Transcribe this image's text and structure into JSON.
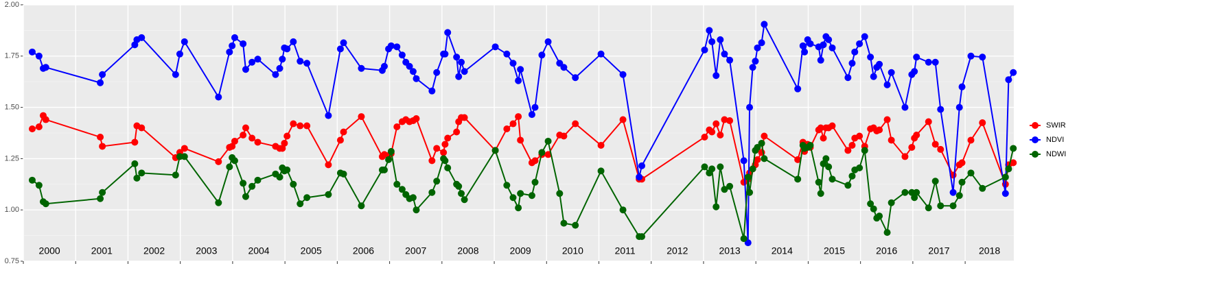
{
  "chart_data": {
    "type": "line",
    "x": [
      2000.17,
      2000.3,
      2000.38,
      2000.43,
      2001.47,
      2001.51,
      2002.13,
      2002.17,
      2002.26,
      2002.91,
      2002.99,
      2003.08,
      2003.73,
      2003.94,
      2003.99,
      2004.04,
      2004.2,
      2004.25,
      2004.37,
      2004.48,
      2004.82,
      2004.9,
      2004.95,
      2004.99,
      2005.04,
      2005.16,
      2005.29,
      2005.42,
      2005.83,
      2006.06,
      2006.12,
      2006.46,
      2006.86,
      2006.9,
      2006.98,
      2007.03,
      2007.14,
      2007.24,
      2007.31,
      2007.38,
      2007.45,
      2007.51,
      2007.81,
      2007.9,
      2008.03,
      2008.06,
      2008.11,
      2008.28,
      2008.32,
      2008.37,
      2008.43,
      2009.02,
      2009.24,
      2009.36,
      2009.46,
      2009.5,
      2009.72,
      2009.78,
      2009.91,
      2010.03,
      2010.25,
      2010.33,
      2010.55,
      2011.04,
      2011.46,
      2011.77,
      2011.82,
      2013.02,
      2013.11,
      2013.16,
      2013.24,
      2013.32,
      2013.4,
      2013.5,
      2013.77,
      2013.85,
      2013.88,
      2013.94,
      2013.99,
      2014.03,
      2014.11,
      2014.16,
      2014.8,
      2014.9,
      2014.93,
      2014.99,
      2015.04,
      2015.2,
      2015.24,
      2015.29,
      2015.34,
      2015.39,
      2015.46,
      2015.76,
      2015.84,
      2015.89,
      2015.98,
      2016.08,
      2016.19,
      2016.25,
      2016.31,
      2016.36,
      2016.51,
      2016.59,
      2016.85,
      2016.98,
      2017.03,
      2017.07,
      2017.3,
      2017.43,
      2017.53,
      2017.77,
      2017.89,
      2017.94,
      2018.11,
      2018.33,
      2018.77,
      2018.83,
      2018.92
    ],
    "series": [
      {
        "name": "SWIR",
        "color": "#ff0000",
        "values": [
          1.395,
          1.405,
          1.46,
          1.44,
          1.355,
          1.31,
          1.33,
          1.41,
          1.4,
          1.255,
          1.28,
          1.3,
          1.235,
          1.305,
          1.31,
          1.335,
          1.365,
          1.4,
          1.35,
          1.33,
          1.31,
          1.3,
          1.3,
          1.325,
          1.36,
          1.42,
          1.41,
          1.41,
          1.22,
          1.34,
          1.38,
          1.455,
          1.26,
          1.27,
          1.265,
          1.275,
          1.405,
          1.43,
          1.44,
          1.43,
          1.435,
          1.445,
          1.24,
          1.3,
          1.28,
          1.32,
          1.35,
          1.38,
          1.43,
          1.45,
          1.45,
          1.29,
          1.395,
          1.42,
          1.455,
          1.34,
          1.23,
          1.24,
          1.27,
          1.27,
          1.365,
          1.36,
          1.42,
          1.315,
          1.44,
          1.15,
          1.15,
          1.355,
          1.39,
          1.38,
          1.42,
          1.365,
          1.44,
          1.435,
          1.135,
          1.15,
          1.18,
          1.2,
          1.22,
          1.245,
          1.28,
          1.36,
          1.245,
          1.33,
          1.285,
          1.32,
          1.305,
          1.39,
          1.4,
          1.35,
          1.4,
          1.4,
          1.41,
          1.29,
          1.315,
          1.35,
          1.36,
          1.31,
          1.395,
          1.4,
          1.385,
          1.39,
          1.44,
          1.34,
          1.26,
          1.305,
          1.35,
          1.365,
          1.43,
          1.32,
          1.295,
          1.17,
          1.22,
          1.23,
          1.34,
          1.425,
          1.125,
          1.22,
          1.23
        ]
      },
      {
        "name": "NDVI",
        "color": "#0000ff",
        "values": [
          1.77,
          1.75,
          1.69,
          1.695,
          1.62,
          1.66,
          1.805,
          1.83,
          1.84,
          1.66,
          1.76,
          1.82,
          1.55,
          1.77,
          1.8,
          1.84,
          1.81,
          1.685,
          1.72,
          1.735,
          1.66,
          1.69,
          1.735,
          1.79,
          1.785,
          1.82,
          1.725,
          1.715,
          1.46,
          1.785,
          1.815,
          1.69,
          1.68,
          1.7,
          1.785,
          1.8,
          1.795,
          1.755,
          1.72,
          1.7,
          1.675,
          1.64,
          1.58,
          1.67,
          1.76,
          1.76,
          1.865,
          1.745,
          1.65,
          1.72,
          1.675,
          1.795,
          1.76,
          1.715,
          1.63,
          1.685,
          1.465,
          1.5,
          1.755,
          1.82,
          1.715,
          1.695,
          1.645,
          1.76,
          1.66,
          1.16,
          1.215,
          1.78,
          1.875,
          1.82,
          1.655,
          1.83,
          1.76,
          1.73,
          1.24,
          0.84,
          1.5,
          1.695,
          1.725,
          1.79,
          1.815,
          1.905,
          1.59,
          1.8,
          1.77,
          1.83,
          1.81,
          1.795,
          1.73,
          1.805,
          1.845,
          1.83,
          1.79,
          1.645,
          1.715,
          1.77,
          1.81,
          1.845,
          1.745,
          1.65,
          1.695,
          1.71,
          1.61,
          1.67,
          1.5,
          1.66,
          1.675,
          1.745,
          1.72,
          1.72,
          1.49,
          1.085,
          1.5,
          1.6,
          1.75,
          1.745,
          1.08,
          1.635,
          1.67
        ]
      },
      {
        "name": "NDWI",
        "color": "#006400",
        "values": [
          1.145,
          1.12,
          1.04,
          1.03,
          1.055,
          1.085,
          1.225,
          1.155,
          1.18,
          1.17,
          1.26,
          1.26,
          1.035,
          1.21,
          1.255,
          1.24,
          1.13,
          1.065,
          1.115,
          1.145,
          1.175,
          1.16,
          1.205,
          1.19,
          1.195,
          1.125,
          1.03,
          1.06,
          1.075,
          1.18,
          1.175,
          1.02,
          1.195,
          1.195,
          1.245,
          1.285,
          1.125,
          1.1,
          1.075,
          1.055,
          1.06,
          1.0,
          1.085,
          1.14,
          1.25,
          1.24,
          1.205,
          1.125,
          1.115,
          1.08,
          1.05,
          1.29,
          1.12,
          1.06,
          1.01,
          1.08,
          1.07,
          1.135,
          1.28,
          1.335,
          1.08,
          0.935,
          0.925,
          1.19,
          1.0,
          0.87,
          0.87,
          1.21,
          1.18,
          1.2,
          1.015,
          1.21,
          1.1,
          1.115,
          0.86,
          1.16,
          1.085,
          1.2,
          1.29,
          1.305,
          1.325,
          1.25,
          1.15,
          1.315,
          1.3,
          1.305,
          1.315,
          1.135,
          1.08,
          1.225,
          1.25,
          1.21,
          1.15,
          1.12,
          1.165,
          1.195,
          1.205,
          1.29,
          1.03,
          1.005,
          0.96,
          0.97,
          0.89,
          1.035,
          1.085,
          1.085,
          1.06,
          1.085,
          1.01,
          1.14,
          1.02,
          1.02,
          1.07,
          1.135,
          1.18,
          1.105,
          1.16,
          1.2,
          1.3
        ]
      }
    ],
    "xlim": [
      2000,
      2018.93
    ],
    "xticks": [
      2000,
      2001,
      2002,
      2003,
      2004,
      2005,
      2006,
      2007,
      2008,
      2009,
      2010,
      2011,
      2012,
      2013,
      2014,
      2015,
      2016,
      2017,
      2018
    ],
    "year_labels": [
      "2000",
      "2001",
      "2002",
      "2003",
      "2004",
      "2005",
      "2006",
      "2007",
      "2008",
      "2009",
      "2010",
      "2011",
      "2012",
      "2013",
      "2014",
      "2015",
      "2016",
      "2017",
      "2018"
    ],
    "ylim": [
      0.75,
      2.0
    ],
    "yticks": [
      {
        "value": 0.75,
        "label": "0.75"
      },
      {
        "value": 1.0,
        "label": "1.00"
      },
      {
        "value": 1.25,
        "label": "1.25"
      },
      {
        "value": 1.5,
        "label": "1.50"
      },
      {
        "value": 1.75,
        "label": "1.75"
      },
      {
        "value": 2.0,
        "label": "2.00"
      }
    ],
    "grid": true,
    "legend": "right"
  }
}
